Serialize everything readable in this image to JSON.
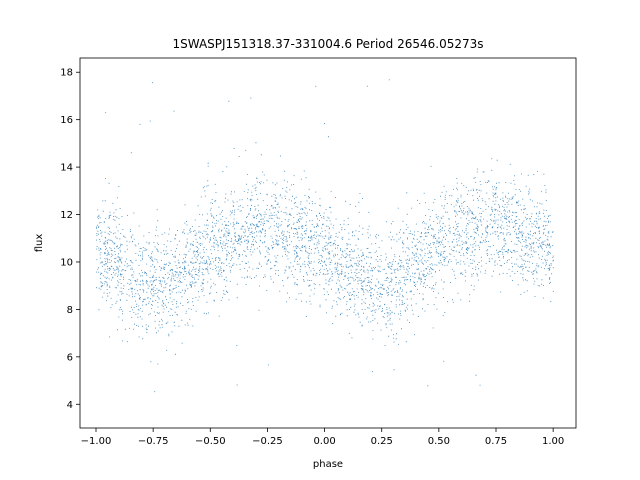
{
  "chart_data": {
    "type": "scatter",
    "title": "1SWASPJ151318.37-331004.6 Period 26546.05273s",
    "xlabel": "phase",
    "ylabel": "flux",
    "xlim": [
      -1.07,
      1.1
    ],
    "ylim": [
      3.0,
      18.6
    ],
    "xticks": [
      -1.0,
      -0.75,
      -0.5,
      -0.25,
      0.0,
      0.25,
      0.5,
      0.75,
      1.0
    ],
    "xtick_labels": [
      "−1.00",
      "−0.75",
      "−0.50",
      "−0.25",
      "0.00",
      "0.25",
      "0.50",
      "0.75",
      "1.00"
    ],
    "yticks": [
      4,
      6,
      8,
      10,
      12,
      14,
      16,
      18
    ],
    "ytick_labels": [
      "4",
      "6",
      "8",
      "10",
      "12",
      "14",
      "16",
      "18"
    ],
    "grid": false,
    "color": "#1f77b4",
    "series": [
      {
        "phase": [
          -1.0,
          -0.9,
          -0.8,
          -0.75,
          -0.7,
          -0.6,
          -0.5,
          -0.4,
          -0.3,
          -0.25,
          -0.2,
          -0.1,
          0.0,
          0.1,
          0.2,
          0.25,
          0.3,
          0.4,
          0.5,
          0.6,
          0.7,
          0.75,
          0.8,
          0.9,
          1.0
        ],
        "flux_center": [
          10.6,
          9.9,
          9.1,
          9.0,
          9.1,
          9.7,
          10.5,
          11.1,
          11.4,
          11.4,
          11.3,
          10.9,
          10.4,
          9.8,
          9.2,
          9.0,
          9.2,
          9.9,
          10.7,
          11.2,
          11.5,
          11.5,
          11.4,
          11.1,
          10.6
        ],
        "spread": 1.3,
        "point_count_approx": 30000,
        "outlier_range": [
          3.8,
          17.8
        ]
      }
    ]
  }
}
